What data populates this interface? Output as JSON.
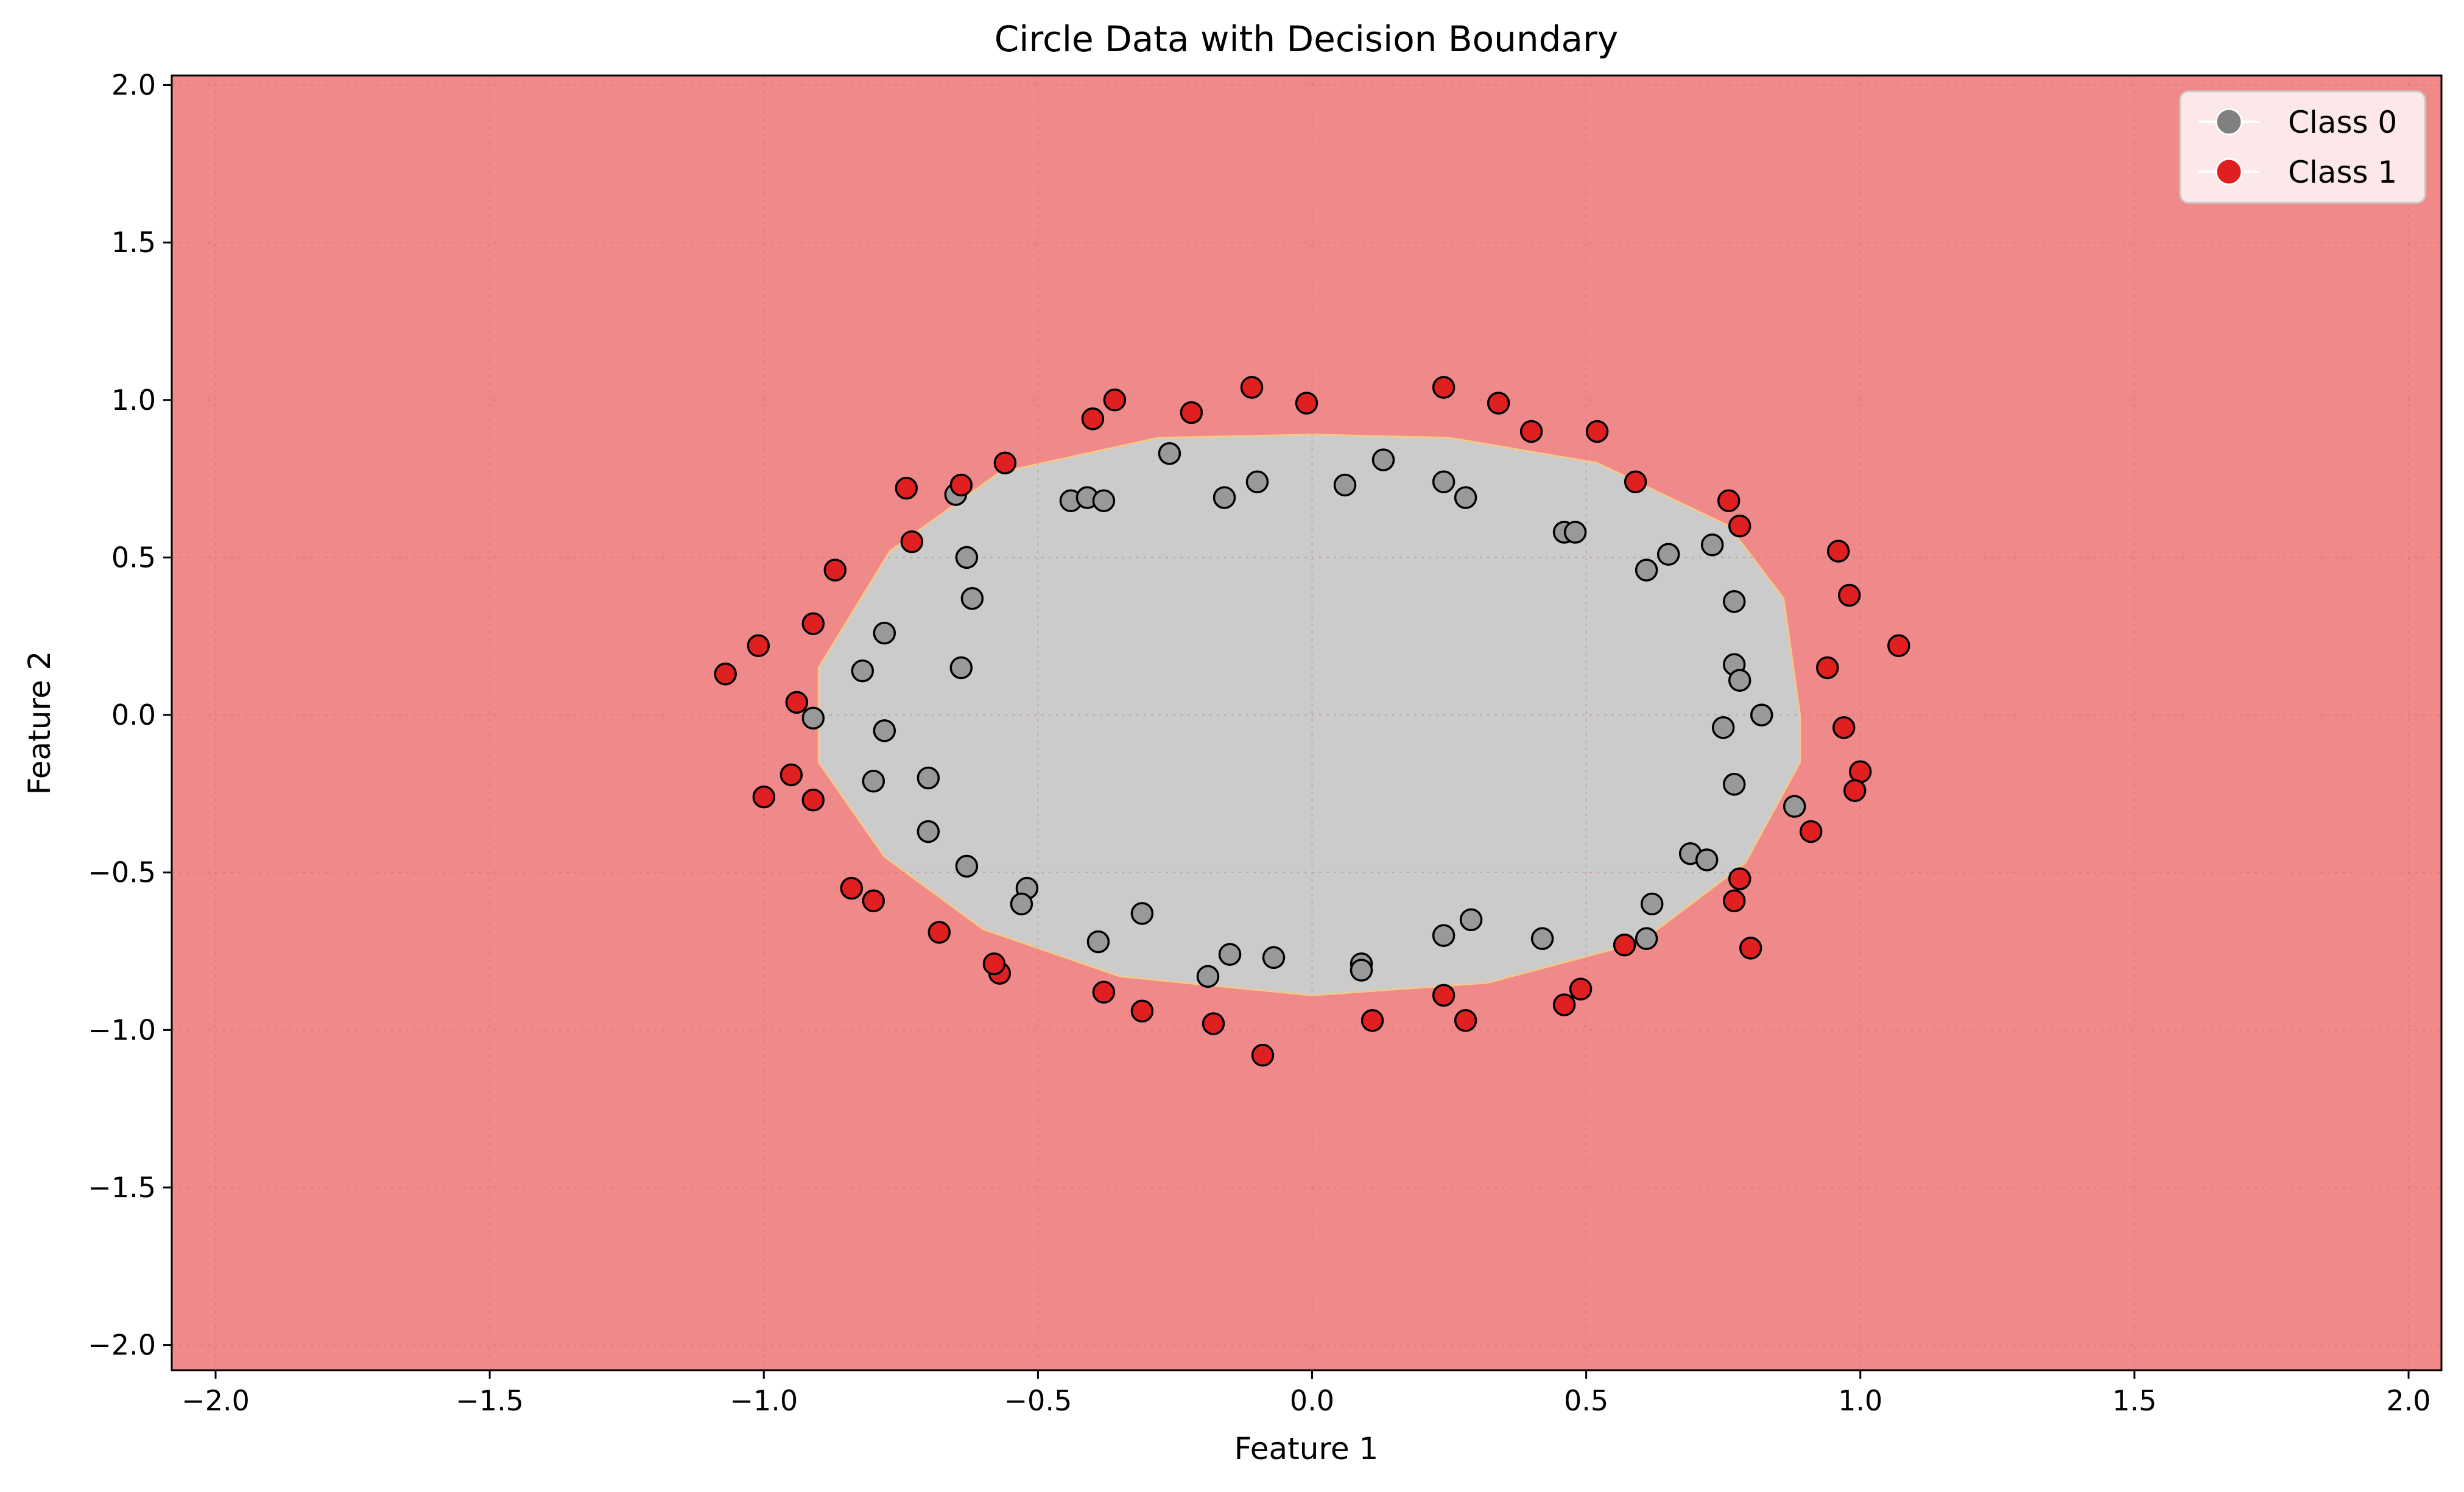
{
  "chart_data": {
    "type": "scatter",
    "title": "Circle Data with Decision Boundary",
    "xlabel": "Feature 1",
    "ylabel": "Feature 2",
    "xlim": [
      -2.08,
      2.06
    ],
    "ylim": [
      -2.08,
      2.03
    ],
    "xticks": [
      -2.0,
      -1.5,
      -1.0,
      -0.5,
      0.0,
      0.5,
      1.0,
      1.5,
      2.0
    ],
    "xtick_labels": [
      "−2.0",
      "−1.5",
      "−1.0",
      "−0.5",
      "0.0",
      "0.5",
      "1.0",
      "1.5",
      "2.0"
    ],
    "yticks": [
      2.0,
      1.5,
      1.0,
      0.5,
      0.0,
      -0.5,
      -1.0,
      -1.5,
      -2.0
    ],
    "ytick_labels": [
      "2.0",
      "1.5",
      "1.0",
      "0.5",
      "0.0",
      "−0.5",
      "−1.0",
      "−1.5",
      "−2.0"
    ],
    "grid": true,
    "legend_position": "top-right",
    "decision_region": {
      "outer_color": "#f08a8a",
      "inner_color": "#cbcbcb",
      "boundary_color": "#f2c98a",
      "boundary": [
        [
          0.89,
          0.0
        ],
        [
          0.86,
          0.37
        ],
        [
          0.76,
          0.6
        ],
        [
          0.52,
          0.8
        ],
        [
          0.25,
          0.88
        ],
        [
          0.0,
          0.89
        ],
        [
          -0.28,
          0.88
        ],
        [
          -0.57,
          0.77
        ],
        [
          -0.77,
          0.52
        ],
        [
          -0.9,
          0.15
        ],
        [
          -0.9,
          -0.15
        ],
        [
          -0.78,
          -0.45
        ],
        [
          -0.6,
          -0.68
        ],
        [
          -0.35,
          -0.83
        ],
        [
          0.0,
          -0.89
        ],
        [
          0.32,
          -0.85
        ],
        [
          0.6,
          -0.72
        ],
        [
          0.79,
          -0.47
        ],
        [
          0.89,
          -0.15
        ]
      ]
    },
    "series": [
      {
        "name": "Class 0",
        "color": "#808080",
        "points": [
          [
            -0.65,
            0.7
          ],
          [
            -0.63,
            0.5
          ],
          [
            -0.62,
            0.37
          ],
          [
            -0.44,
            0.68
          ],
          [
            -0.41,
            0.69
          ],
          [
            -0.38,
            0.68
          ],
          [
            -0.26,
            0.83
          ],
          [
            -0.16,
            0.69
          ],
          [
            -0.1,
            0.74
          ],
          [
            0.06,
            0.73
          ],
          [
            0.13,
            0.81
          ],
          [
            0.24,
            0.74
          ],
          [
            0.28,
            0.69
          ],
          [
            0.46,
            0.58
          ],
          [
            0.48,
            0.58
          ],
          [
            0.61,
            0.46
          ],
          [
            0.65,
            0.51
          ],
          [
            0.73,
            0.54
          ],
          [
            0.77,
            0.36
          ],
          [
            0.77,
            0.16
          ],
          [
            0.78,
            0.11
          ],
          [
            0.82,
            0.0
          ],
          [
            0.75,
            -0.04
          ],
          [
            0.77,
            -0.22
          ],
          [
            0.88,
            -0.29
          ],
          [
            0.69,
            -0.44
          ],
          [
            0.72,
            -0.46
          ],
          [
            0.62,
            -0.6
          ],
          [
            0.61,
            -0.71
          ],
          [
            0.42,
            -0.71
          ],
          [
            0.29,
            -0.65
          ],
          [
            0.24,
            -0.7
          ],
          [
            0.09,
            -0.79
          ],
          [
            0.09,
            -0.81
          ],
          [
            -0.07,
            -0.77
          ],
          [
            -0.15,
            -0.76
          ],
          [
            -0.19,
            -0.83
          ],
          [
            -0.31,
            -0.63
          ],
          [
            -0.39,
            -0.72
          ],
          [
            -0.52,
            -0.55
          ],
          [
            -0.53,
            -0.6
          ],
          [
            -0.63,
            -0.48
          ],
          [
            -0.7,
            -0.37
          ],
          [
            -0.7,
            -0.2
          ],
          [
            -0.8,
            -0.21
          ],
          [
            -0.78,
            -0.05
          ],
          [
            -0.91,
            -0.01
          ],
          [
            -0.82,
            0.14
          ],
          [
            -0.78,
            0.26
          ],
          [
            -0.64,
            0.15
          ]
        ]
      },
      {
        "name": "Class 1",
        "color": "#e02020",
        "points": [
          [
            -1.07,
            0.13
          ],
          [
            -1.01,
            0.22
          ],
          [
            -0.94,
            0.04
          ],
          [
            -0.91,
            0.29
          ],
          [
            -0.87,
            0.46
          ],
          [
            -0.74,
            0.72
          ],
          [
            -0.73,
            0.55
          ],
          [
            -0.64,
            0.73
          ],
          [
            -0.56,
            0.8
          ],
          [
            -0.4,
            0.94
          ],
          [
            -0.36,
            1.0
          ],
          [
            -0.22,
            0.96
          ],
          [
            -0.11,
            1.04
          ],
          [
            -0.01,
            0.99
          ],
          [
            0.24,
            1.04
          ],
          [
            0.34,
            0.99
          ],
          [
            0.4,
            0.9
          ],
          [
            0.52,
            0.9
          ],
          [
            0.59,
            0.74
          ],
          [
            0.76,
            0.68
          ],
          [
            0.78,
            0.6
          ],
          [
            0.96,
            0.52
          ],
          [
            0.98,
            0.38
          ],
          [
            1.07,
            0.22
          ],
          [
            0.94,
            0.15
          ],
          [
            0.97,
            -0.04
          ],
          [
            1.0,
            -0.18
          ],
          [
            0.99,
            -0.24
          ],
          [
            0.91,
            -0.37
          ],
          [
            0.78,
            -0.52
          ],
          [
            0.77,
            -0.59
          ],
          [
            0.8,
            -0.74
          ],
          [
            0.57,
            -0.73
          ],
          [
            0.49,
            -0.87
          ],
          [
            0.46,
            -0.92
          ],
          [
            0.28,
            -0.97
          ],
          [
            0.24,
            -0.89
          ],
          [
            0.11,
            -0.97
          ],
          [
            -0.09,
            -1.08
          ],
          [
            -0.18,
            -0.98
          ],
          [
            -0.31,
            -0.94
          ],
          [
            -0.38,
            -0.88
          ],
          [
            -0.57,
            -0.82
          ],
          [
            -0.58,
            -0.79
          ],
          [
            -0.68,
            -0.69
          ],
          [
            -0.8,
            -0.59
          ],
          [
            -0.84,
            -0.55
          ],
          [
            -0.91,
            -0.27
          ],
          [
            -0.95,
            -0.19
          ],
          [
            -1.0,
            -0.26
          ]
        ]
      }
    ]
  }
}
